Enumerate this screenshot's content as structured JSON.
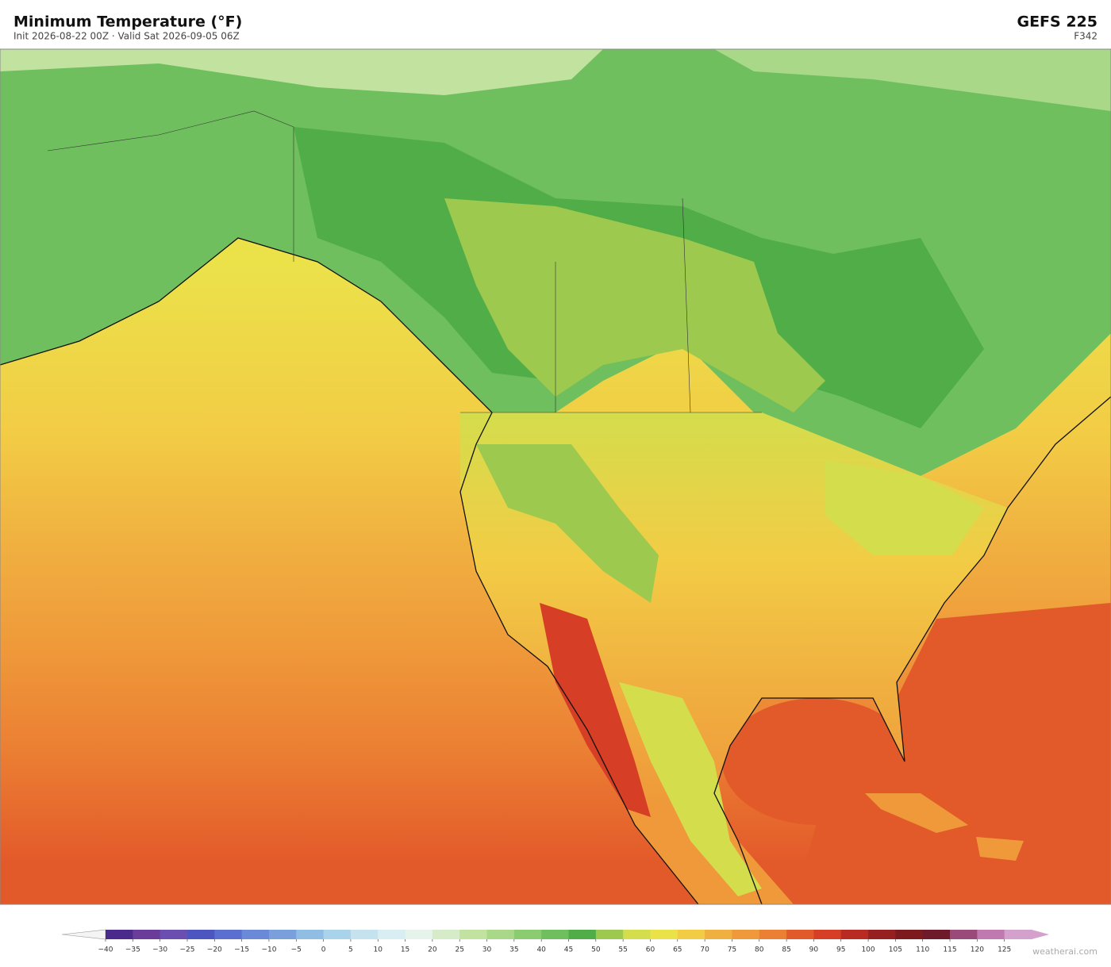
{
  "header": {
    "title": "Minimum Temperature  (°F)",
    "subtitle": "Init 2026-08-22 00Z  ·  Valid Sat 2026-09-05 06Z",
    "model": "GEFS  225",
    "forecast_hour": "F342"
  },
  "colorbar": {
    "lim": [
      -40,
      130
    ],
    "ticks": [
      {
        "value": -40,
        "label": "−40"
      },
      {
        "value": -35,
        "label": "−35"
      },
      {
        "value": -30,
        "label": "−30"
      },
      {
        "value": -25,
        "label": "−25"
      },
      {
        "value": -20,
        "label": "−20"
      },
      {
        "value": -15,
        "label": "−15"
      },
      {
        "value": -10,
        "label": "−10"
      },
      {
        "value": -5,
        "label": "−5"
      },
      0,
      5,
      10,
      15,
      20,
      25,
      30,
      35,
      40,
      45,
      50,
      55,
      60,
      65,
      70,
      75,
      80,
      85,
      90,
      95,
      100,
      105,
      110,
      115,
      120,
      125
    ],
    "colors": [
      "#4a2a8a",
      "#6a3d9a",
      "#6b4fb0",
      "#4d55c0",
      "#5a6fd0",
      "#6a8ad8",
      "#7aa0dc",
      "#8fbde3",
      "#a9d3ea",
      "#c4e3ef",
      "#d9eef2",
      "#e6f3ea",
      "#d6ecc9",
      "#c2e3a0",
      "#a8d888",
      "#8ccc70",
      "#6fbf5e",
      "#50ad48",
      "#9dc94e",
      "#d4dd4c",
      "#ebe24a",
      "#f2cc45",
      "#f0b040",
      "#ef993a",
      "#eb7f33",
      "#e35a2a",
      "#d63e25",
      "#b82a22",
      "#962020",
      "#7c1a1d",
      "#6e1a2a",
      "#9a4a7a",
      "#c07ab0",
      "#d4a0cc"
    ],
    "under_color": "#f4f4f4",
    "over_color": "#d4a0cc"
  },
  "watermark": "weatherai.com"
}
